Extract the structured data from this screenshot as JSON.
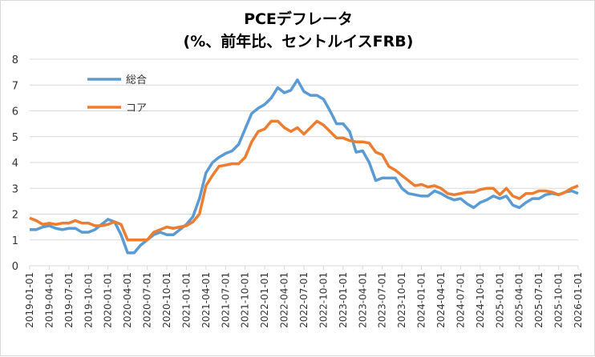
{
  "chart_data": {
    "type": "line",
    "title": "PCEデフレータ",
    "subtitle": "(%、前年比、セントルイスFRB)",
    "xlabel": "",
    "ylabel": "",
    "ylim": [
      0,
      8
    ],
    "yticks": [
      "0",
      "1",
      "2",
      "3",
      "4",
      "5",
      "6",
      "7",
      "8"
    ],
    "start": "2019-01",
    "xtick_labels": [
      "2019-01-01",
      "2019-04-01",
      "2019-07-01",
      "2019-10-01",
      "2020-01-01",
      "2020-04-01",
      "2020-07-01",
      "2020-10-01",
      "2021-01-01",
      "2021-04-01",
      "2021-07-01",
      "2021-10-01",
      "2022-01-01",
      "2022-04-01",
      "2022-07-01",
      "2022-10-01",
      "2023-01-01",
      "2023-04-01",
      "2023-07-01",
      "2023-10-01",
      "2024-01-01",
      "2024-04-01",
      "2024-07-01",
      "2024-10-01",
      "2025-01-01",
      "2025-04-01",
      "2025-07-01",
      "2025-10-01",
      "2026-01-01"
    ],
    "grid": true,
    "legend_position": "top-left",
    "series": [
      {
        "name": "総合",
        "color": "#5b9bd5",
        "values": [
          1.4,
          1.4,
          1.5,
          1.55,
          1.45,
          1.4,
          1.45,
          1.45,
          1.3,
          1.3,
          1.4,
          1.6,
          1.8,
          1.7,
          1.2,
          0.5,
          0.5,
          0.8,
          1.0,
          1.2,
          1.3,
          1.2,
          1.2,
          1.4,
          1.6,
          1.9,
          2.6,
          3.6,
          4.0,
          4.2,
          4.35,
          4.45,
          4.7,
          5.3,
          5.9,
          6.1,
          6.25,
          6.5,
          6.9,
          6.7,
          6.8,
          7.2,
          6.75,
          6.6,
          6.6,
          6.45,
          6.0,
          5.5,
          5.5,
          5.2,
          4.4,
          4.45,
          4.0,
          3.3,
          3.4,
          3.4,
          3.4,
          3.0,
          2.8,
          2.75,
          2.7,
          2.7,
          2.9,
          2.8,
          2.65,
          2.55,
          2.6,
          2.4,
          2.25,
          2.45,
          2.55,
          2.7,
          2.6,
          2.7,
          2.35,
          2.25,
          2.45,
          2.6,
          2.6,
          2.75,
          2.8,
          2.75,
          2.85,
          2.9,
          2.8
        ]
      },
      {
        "name": "コア",
        "color": "#ed7d31",
        "values": [
          1.85,
          1.75,
          1.6,
          1.65,
          1.6,
          1.65,
          1.65,
          1.75,
          1.65,
          1.65,
          1.55,
          1.55,
          1.6,
          1.7,
          1.6,
          1.0,
          1.0,
          1.0,
          1.0,
          1.3,
          1.4,
          1.5,
          1.45,
          1.5,
          1.55,
          1.7,
          2.0,
          3.1,
          3.5,
          3.85,
          3.9,
          3.95,
          3.95,
          4.2,
          4.8,
          5.2,
          5.3,
          5.6,
          5.6,
          5.35,
          5.2,
          5.35,
          5.1,
          5.35,
          5.6,
          5.45,
          5.2,
          4.95,
          4.95,
          4.85,
          4.8,
          4.8,
          4.75,
          4.4,
          4.3,
          3.85,
          3.7,
          3.5,
          3.3,
          3.1,
          3.15,
          3.05,
          3.1,
          3.0,
          2.8,
          2.75,
          2.8,
          2.85,
          2.85,
          2.95,
          3.0,
          3.0,
          2.75,
          3.0,
          2.7,
          2.6,
          2.8,
          2.8,
          2.9,
          2.9,
          2.85,
          2.75,
          2.85,
          3.0,
          3.1
        ]
      }
    ]
  }
}
